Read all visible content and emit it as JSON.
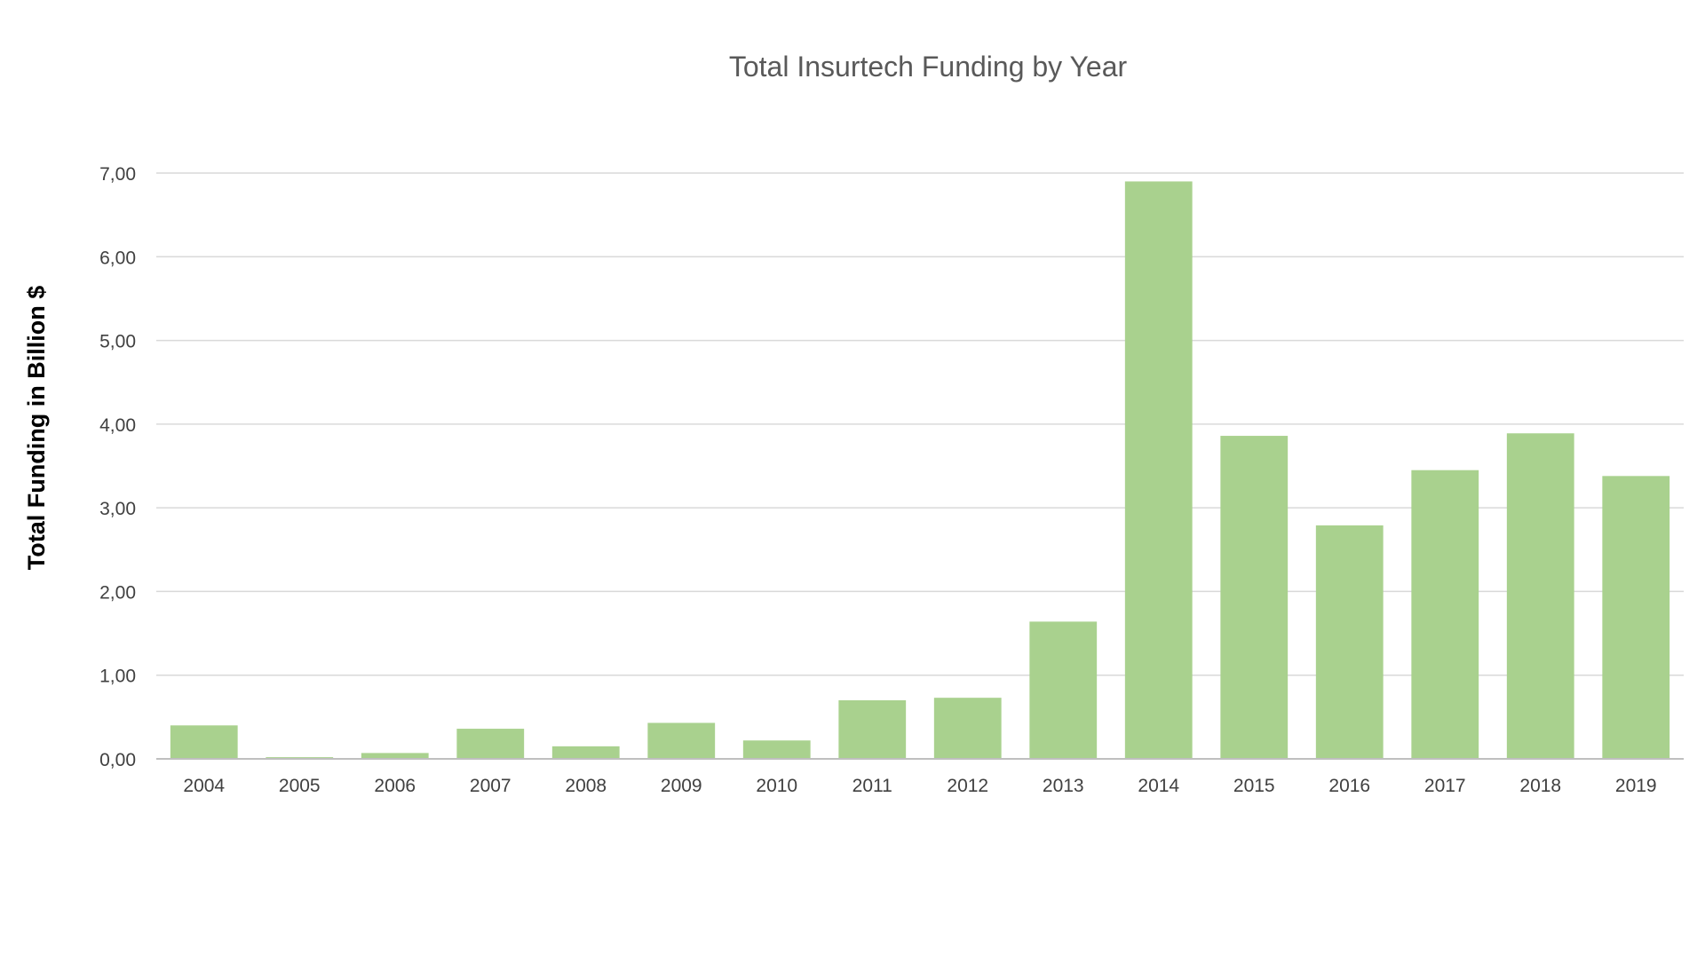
{
  "chart_data": {
    "type": "bar",
    "title": "Total Insurtech Funding by Year",
    "xlabel": "",
    "ylabel": "Total Funding in Billion $",
    "categories": [
      "2004",
      "2005",
      "2006",
      "2007",
      "2008",
      "2009",
      "2010",
      "2011",
      "2012",
      "2013",
      "2014",
      "2015",
      "2016",
      "2017",
      "2018",
      "2019"
    ],
    "values": [
      0.4,
      0.02,
      0.07,
      0.36,
      0.15,
      0.43,
      0.22,
      0.7,
      0.73,
      1.64,
      6.9,
      3.86,
      2.79,
      3.45,
      3.89,
      3.38
    ],
    "ylim": [
      0,
      7
    ],
    "yticks": [
      "0,00",
      "1,00",
      "2,00",
      "3,00",
      "4,00",
      "5,00",
      "6,00",
      "7,00"
    ],
    "grid": true,
    "legend": "none",
    "colors": {
      "bar": "#a9d18e",
      "grid": "#d9d9d9",
      "axis": "#bfbfbf",
      "title": "#595959",
      "tick_label": "#404040",
      "axis_title": "#000000"
    }
  }
}
